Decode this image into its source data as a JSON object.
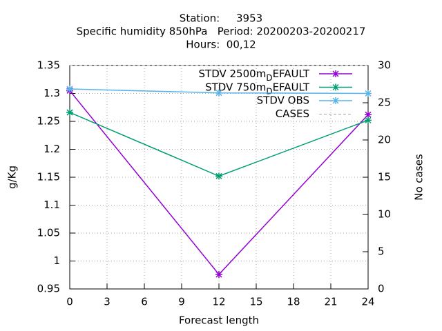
{
  "chart_data": {
    "type": "line",
    "title": [
      "Station:     3953",
      "Specific humidity 850hPa   Period: 20200203-20200217",
      "Hours:  00,12"
    ],
    "x_label": "Forecast length",
    "y_label": "g/Kg",
    "y2_label": "No cases",
    "x": [
      0,
      12,
      24
    ],
    "xlim": [
      0,
      24
    ],
    "xticks": [
      0,
      3,
      6,
      9,
      12,
      15,
      18,
      21,
      24
    ],
    "ylim": [
      0.95,
      1.35
    ],
    "yticks": [
      0.95,
      1,
      1.05,
      1.1,
      1.15,
      1.2,
      1.25,
      1.3,
      1.35
    ],
    "y2lim": [
      0,
      30
    ],
    "y2ticks": [
      0,
      5,
      10,
      15,
      20,
      25,
      30
    ],
    "grid": true,
    "legend": "top-right",
    "series": [
      {
        "name": "STDV 2500m_DEFAULT",
        "color": "#9400d3",
        "values": [
          1.305,
          0.976,
          1.262
        ]
      },
      {
        "name": "STDV 750m_DEFAULT",
        "color": "#009e73",
        "values": [
          1.266,
          1.152,
          1.252
        ]
      },
      {
        "name": "STDV OBS",
        "color": "#56b4e9",
        "values": [
          1.308,
          1.301,
          1.3
        ]
      },
      {
        "name": "CASES",
        "color": "#a0a0a0",
        "axis": "y2",
        "dashed": true,
        "values": [
          30,
          30,
          30
        ]
      }
    ]
  }
}
